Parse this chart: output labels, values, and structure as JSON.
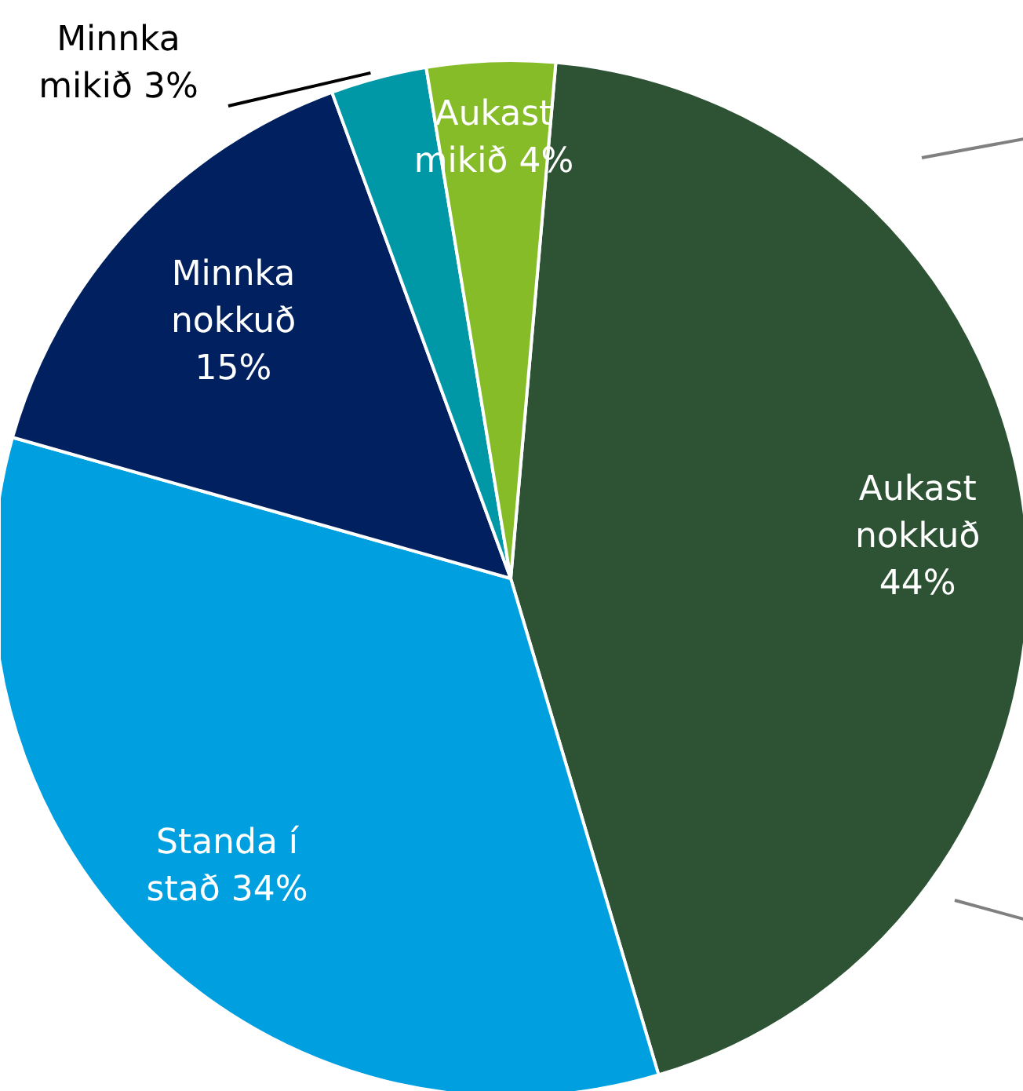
{
  "chart_data": {
    "type": "pie",
    "categories": [
      "Aukast nokkuð",
      "Standa í stað",
      "Minnka nokkuð",
      "Minnka mikið",
      "Aukast mikið"
    ],
    "values": [
      44,
      34,
      15,
      3,
      4
    ],
    "colors": [
      "#2d5234",
      "#00a0e0",
      "#002060",
      "#0097a7",
      "#85bc27"
    ],
    "value_labels": [
      "44%",
      "34%",
      "15%",
      "3%",
      "4%"
    ]
  }
}
